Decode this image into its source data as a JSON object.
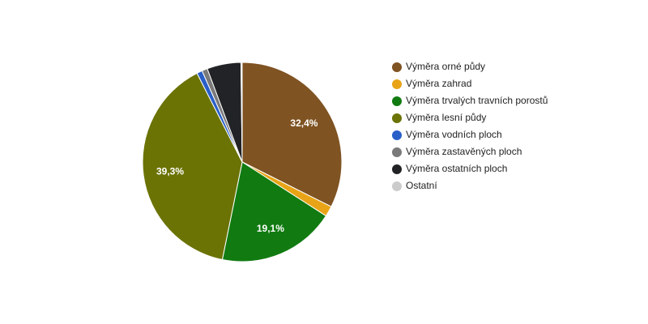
{
  "chart_data": {
    "type": "pie",
    "categories": [
      "Výměra orné půdy",
      "Výměra zahrad",
      "Výměra trvalých travních porostů",
      "Výměra lesní půdy",
      "Výměra vodních ploch",
      "Výměra zastavěných ploch",
      "Výměra ostatních ploch",
      "Ostatní"
    ],
    "values": [
      32.4,
      1.7,
      19.1,
      39.3,
      0.9,
      0.9,
      5.5,
      0.2
    ],
    "value_labels": [
      "32,4%",
      null,
      "19,1%",
      "39,3%",
      null,
      null,
      null,
      null
    ],
    "colors": [
      "#7f5322",
      "#e8a416",
      "#117b11",
      "#6b7305",
      "#2a5fc8",
      "#7a7a7a",
      "#222326",
      "#cccccc"
    ]
  }
}
